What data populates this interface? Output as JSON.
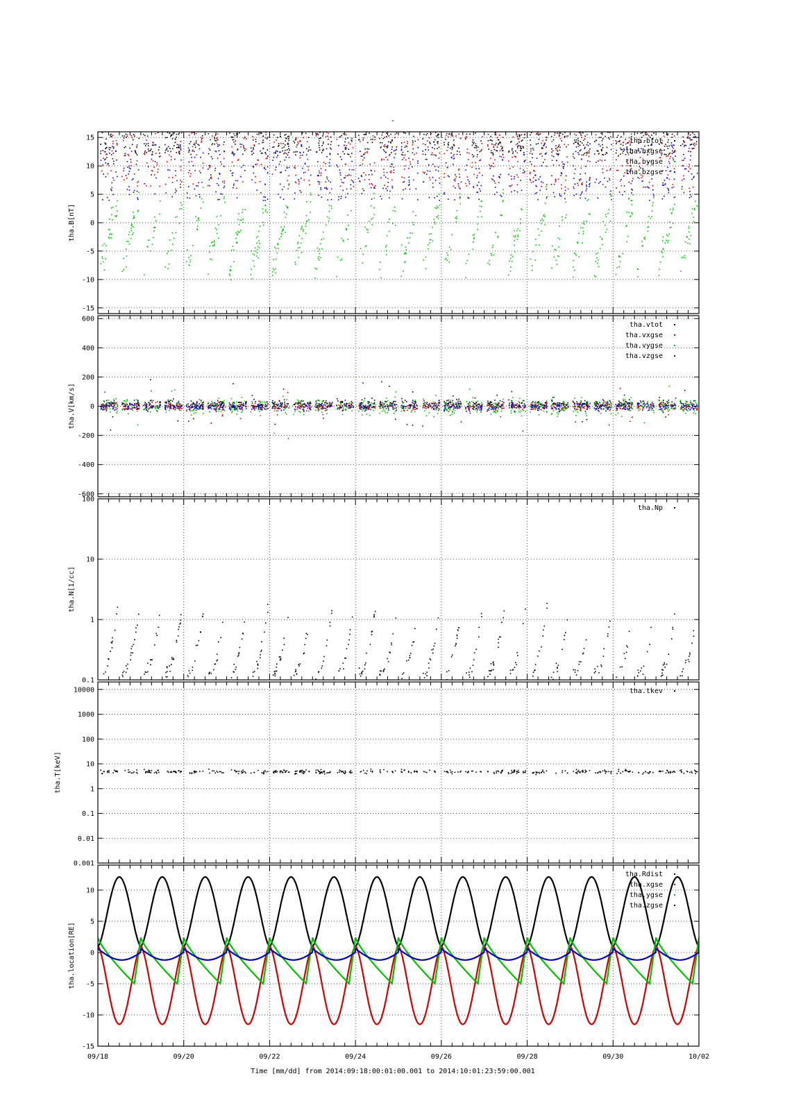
{
  "figure": {
    "title": "-",
    "xlabel": "Time [mm/dd]  from 2014:09:18:00:01:00.001  to  2014:10:01:23:59:00.001",
    "x_ticks": [
      "09/18",
      "09/20",
      "09/22",
      "09/24",
      "09/26",
      "09/28",
      "09/30",
      "10/02"
    ],
    "xlim_days": [
      0,
      14
    ]
  },
  "colors": {
    "black": "#000000",
    "red": "#d00000",
    "green": "#00c000",
    "blue": "#0000c0"
  },
  "chart_data": [
    {
      "type": "scatter",
      "ylabel": "tha.B[nT]",
      "ylim": [
        -16,
        16
      ],
      "yticks": [
        15,
        10,
        5,
        0,
        -5,
        -10,
        -15
      ],
      "legend": "top-right",
      "grid": true,
      "series": [
        {
          "name": "tha.btot",
          "color": "black"
        },
        {
          "name": "tha.bxgse",
          "color": "red"
        },
        {
          "name": "tha.bygse",
          "color": "green"
        },
        {
          "name": "tha.bzgse",
          "color": "blue"
        }
      ]
    },
    {
      "type": "scatter",
      "ylabel": "tha.V[km/s]",
      "ylim": [
        -620,
        620
      ],
      "yticks": [
        600,
        400,
        200,
        0,
        -200,
        -400,
        -600
      ],
      "legend": "top-right",
      "grid": true,
      "series": [
        {
          "name": "tha.vtot",
          "color": "black"
        },
        {
          "name": "tha.vxgse",
          "color": "red"
        },
        {
          "name": "tha.vygse",
          "color": "green"
        },
        {
          "name": "tha.vzgse",
          "color": "blue"
        }
      ]
    },
    {
      "type": "scatter",
      "ylabel": "tha.N[1/cc]",
      "log": true,
      "ylim": [
        0.1,
        100
      ],
      "yticks": [
        100,
        10,
        1,
        0.1
      ],
      "ytick_labels": [
        "100",
        "10",
        "1",
        "0.1"
      ],
      "legend": "top-right",
      "grid": true,
      "series": [
        {
          "name": "tha.Np",
          "color": "black"
        }
      ]
    },
    {
      "type": "scatter",
      "ylabel": "tha.T[keV]",
      "log": true,
      "ylim": [
        0.001,
        20000
      ],
      "yticks": [
        10000,
        1000,
        100,
        10,
        1,
        0.1,
        0.01,
        0.001
      ],
      "ytick_labels": [
        "10000",
        "1000",
        "100",
        "10",
        "1",
        "0.1",
        "0.01",
        "0.001"
      ],
      "legend": "top-right",
      "grid": true,
      "series": [
        {
          "name": "tha.tkev",
          "color": "black"
        }
      ]
    },
    {
      "type": "line",
      "ylabel": "tha.location[RE]",
      "ylim": [
        -15,
        14
      ],
      "yticks": [
        10,
        5,
        0,
        -5,
        -10,
        -15
      ],
      "legend": "top-right",
      "grid": true,
      "orbit_period_days": 1.0,
      "series": [
        {
          "name": "tha.Rdist",
          "color": "black",
          "apogee": 12.1,
          "perigee": 1.0
        },
        {
          "name": "tha.xgse",
          "color": "red",
          "min": -11.5,
          "max": 1.0
        },
        {
          "name": "tha.ygse",
          "color": "green",
          "min": -6.0,
          "max": 2.4
        },
        {
          "name": "tha.zgse",
          "color": "blue",
          "min": -1.2,
          "max": 0.6
        }
      ]
    }
  ]
}
